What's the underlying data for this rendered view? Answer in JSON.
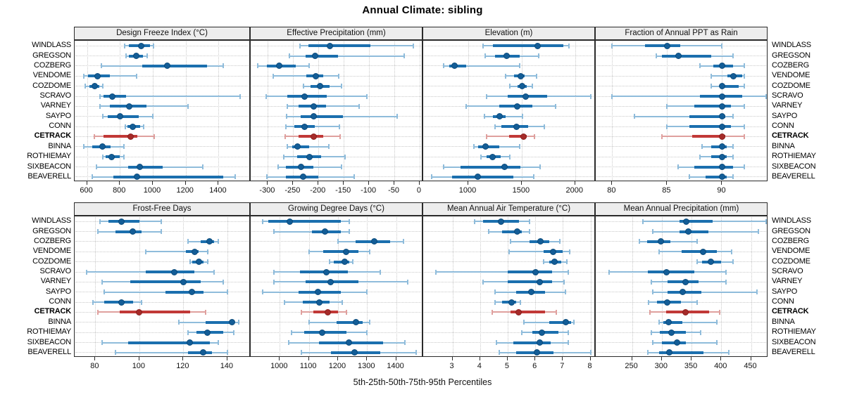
{
  "title": "Annual Climate: sibling",
  "xlabel": "5th-25th-50th-75th-95th Percentiles",
  "colors": {
    "normal": "#1b6fae",
    "normal_light": "#8fbcdb",
    "normal_dot": "#135d97",
    "normal_dot_border": "#0b4a7a",
    "highlight": "#c13937",
    "highlight_light": "#dfa09e",
    "highlight_dot": "#a52b29",
    "highlight_dot_border": "#8a201e",
    "grid": "#c9c9c9",
    "strip_bg": "#ededed",
    "panel_border": "#2a2a2a"
  },
  "chart_data": {
    "type": "dotplot-trellis",
    "layout": "2 rows x 4 cols, station labels on left and right, dotted grid",
    "percentiles": [
      "5th",
      "25th",
      "50th",
      "75th",
      "95th"
    ],
    "stations": [
      "WINDLASS",
      "GREGSON",
      "COZBERG",
      "VENDOME",
      "COZDOME",
      "SCRAVO",
      "VARNEY",
      "SAYPO",
      "CONN",
      "CETRACK",
      "BINNA",
      "ROTHIEMAY",
      "SIXBEACON",
      "BEAVERELL"
    ],
    "highlight_station": "CETRACK",
    "panels": [
      {
        "title": "Design Freeze Index (°C)",
        "grid_pos": [
          0,
          0
        ],
        "axis_ticks": [
          600,
          800,
          1000,
          1200,
          1400
        ],
        "axis_range": [
          525,
          1595
        ],
        "values": [
          [
            827,
            855,
            930,
            985,
            1003
          ],
          [
            838,
            856,
            898,
            940,
            967
          ],
          [
            688,
            935,
            1089,
            1330,
            1430
          ],
          [
            580,
            605,
            665,
            740,
            900
          ],
          [
            590,
            615,
            645,
            675,
            695
          ],
          [
            677,
            700,
            753,
            838,
            1530
          ],
          [
            680,
            740,
            855,
            960,
            1215
          ],
          [
            695,
            725,
            800,
            915,
            1000
          ],
          [
            832,
            848,
            880,
            924,
            945
          ],
          [
            645,
            700,
            865,
            905,
            1010
          ],
          [
            580,
            630,
            695,
            745,
            823
          ],
          [
            695,
            712,
            748,
            800,
            823
          ],
          [
            657,
            850,
            922,
            1060,
            1303
          ],
          [
            630,
            760,
            905,
            1430,
            1500
          ]
        ]
      },
      {
        "title": "Effective Precipitation (mm)",
        "grid_pos": [
          0,
          1
        ],
        "axis_ticks": [
          -300,
          -250,
          -200,
          -150,
          -100,
          -50,
          0
        ],
        "axis_range": [
          -334,
          7
        ],
        "values": [
          [
            -237,
            -220,
            -178,
            -97,
            -12
          ],
          [
            -258,
            -226,
            -207,
            -162,
            -30
          ],
          [
            -320,
            -302,
            -278,
            -245,
            -218
          ],
          [
            -290,
            -224,
            -205,
            -190,
            -160
          ],
          [
            -230,
            -215,
            -197,
            -178,
            -155
          ],
          [
            -303,
            -262,
            -228,
            -183,
            -104
          ],
          [
            -262,
            -240,
            -210,
            -185,
            -120
          ],
          [
            -263,
            -235,
            -210,
            -152,
            -45
          ],
          [
            -265,
            -248,
            -228,
            -207,
            -158
          ],
          [
            -266,
            -240,
            -210,
            -190,
            -157
          ],
          [
            -262,
            -252,
            -242,
            -218,
            -180
          ],
          [
            -268,
            -242,
            -218,
            -195,
            -148
          ],
          [
            -280,
            -265,
            -235,
            -210,
            -155
          ],
          [
            -302,
            -265,
            -230,
            -200,
            -130
          ]
        ]
      },
      {
        "title": "Elevation (m)",
        "grid_pos": [
          0,
          2
        ],
        "axis_ticks": [
          1000,
          1500,
          2000
        ],
        "axis_range": [
          578,
          2193
        ],
        "values": [
          [
            1140,
            1230,
            1650,
            1890,
            1940
          ],
          [
            1160,
            1250,
            1360,
            1480,
            1660
          ],
          [
            770,
            820,
            870,
            980,
            1480
          ],
          [
            1350,
            1430,
            1490,
            1530,
            1640
          ],
          [
            1390,
            1460,
            1505,
            1550,
            1600
          ],
          [
            1170,
            1370,
            1540,
            1740,
            2150
          ],
          [
            980,
            1290,
            1460,
            1600,
            1820
          ],
          [
            1150,
            1230,
            1290,
            1350,
            1510
          ],
          [
            1250,
            1310,
            1450,
            1560,
            1710
          ],
          [
            1170,
            1380,
            1515,
            1550,
            1620
          ],
          [
            1050,
            1090,
            1160,
            1290,
            1480
          ],
          [
            1120,
            1170,
            1230,
            1300,
            1390
          ],
          [
            770,
            930,
            1340,
            1490,
            1670
          ],
          [
            660,
            850,
            1090,
            1420,
            1610
          ]
        ]
      },
      {
        "title": "Fraction of Annual PPT as Rain",
        "grid_pos": [
          0,
          3
        ],
        "axis_ticks": [
          80,
          85,
          90
        ],
        "axis_range": [
          78.5,
          94.2
        ],
        "values": [
          [
            80,
            83,
            85,
            86.2,
            90
          ],
          [
            84,
            84.5,
            86,
            89,
            91
          ],
          [
            88,
            89.2,
            90,
            91,
            92
          ],
          [
            89,
            90.5,
            91,
            91.8,
            92
          ],
          [
            89,
            89.8,
            90,
            91.5,
            92
          ],
          [
            80,
            88,
            90,
            91.8,
            94
          ],
          [
            85,
            87.5,
            90,
            90.8,
            92
          ],
          [
            82,
            87,
            90,
            90.3,
            91
          ],
          [
            85,
            87,
            90,
            90.8,
            92
          ],
          [
            84.5,
            87.3,
            90,
            90.3,
            92
          ],
          [
            88.2,
            89,
            90,
            90.4,
            91
          ],
          [
            88,
            89,
            90,
            90.4,
            91
          ],
          [
            86,
            87.5,
            90,
            91,
            92
          ],
          [
            87,
            88.5,
            90,
            90.4,
            91
          ]
        ]
      },
      {
        "title": "Frost-Free Days",
        "grid_pos": [
          1,
          0
        ],
        "axis_ticks": [
          80,
          100,
          120,
          140
        ],
        "axis_range": [
          70.6,
          150.6
        ],
        "values": [
          [
            82,
            86,
            92,
            100,
            110
          ],
          [
            81,
            89,
            97,
            101,
            110
          ],
          [
            122,
            128,
            132,
            134,
            136
          ],
          [
            103,
            121,
            125,
            127,
            131
          ],
          [
            123,
            124,
            127,
            129,
            131
          ],
          [
            76,
            103,
            116,
            125,
            134
          ],
          [
            83,
            96,
            120,
            128,
            138
          ],
          [
            84,
            112,
            124,
            129,
            140
          ],
          [
            79,
            84,
            92,
            97,
            101
          ],
          [
            81,
            91,
            100,
            123,
            130
          ],
          [
            118,
            130,
            142,
            143,
            145
          ],
          [
            122,
            126,
            131,
            138,
            143
          ],
          [
            83,
            95,
            123,
            132,
            136
          ],
          [
            89,
            122,
            129,
            133,
            140
          ]
        ]
      },
      {
        "title": "Growing Degree Days (°C)",
        "grid_pos": [
          1,
          1
        ],
        "axis_ticks": [
          1000,
          1100,
          1200,
          1300,
          1400
        ],
        "axis_range": [
          900,
          1493
        ],
        "values": [
          [
            940,
            960,
            1035,
            1210,
            1240
          ],
          [
            980,
            1110,
            1155,
            1210,
            1240
          ],
          [
            1200,
            1260,
            1325,
            1380,
            1425
          ],
          [
            1100,
            1150,
            1228,
            1270,
            1310
          ],
          [
            1170,
            1185,
            1222,
            1240,
            1250
          ],
          [
            980,
            1070,
            1160,
            1235,
            1345
          ],
          [
            980,
            1090,
            1175,
            1270,
            1440
          ],
          [
            940,
            1065,
            1130,
            1210,
            1300
          ],
          [
            1015,
            1080,
            1135,
            1170,
            1215
          ],
          [
            1075,
            1115,
            1165,
            1200,
            1230
          ],
          [
            1100,
            1195,
            1262,
            1285,
            1310
          ],
          [
            1040,
            1085,
            1145,
            1230,
            1300
          ],
          [
            1030,
            1135,
            1237,
            1355,
            1430
          ],
          [
            1075,
            1175,
            1258,
            1345,
            1470
          ]
        ]
      },
      {
        "title": "Mean Annual Air Temperature (°C)",
        "grid_pos": [
          1,
          2
        ],
        "axis_ticks": [
          3,
          4,
          5,
          6,
          7,
          8
        ],
        "axis_range": [
          1.94,
          8.19
        ],
        "values": [
          [
            3.8,
            4.1,
            4.75,
            5.4,
            5.8
          ],
          [
            4.3,
            4.8,
            5.35,
            5.5,
            5.8
          ],
          [
            5.1,
            5.8,
            6.2,
            6.5,
            6.9
          ],
          [
            5.05,
            6.3,
            6.65,
            7.0,
            7.25
          ],
          [
            6.3,
            6.5,
            6.7,
            6.95,
            7.15
          ],
          [
            2.4,
            5.0,
            6.0,
            6.6,
            7.2
          ],
          [
            4.1,
            5.0,
            6.15,
            6.6,
            7.05
          ],
          [
            4.55,
            5.3,
            5.85,
            6.35,
            7.1
          ],
          [
            4.55,
            4.8,
            5.15,
            5.3,
            5.45
          ],
          [
            4.45,
            5.1,
            5.4,
            6.35,
            6.75
          ],
          [
            5.6,
            6.5,
            7.1,
            7.3,
            7.4
          ],
          [
            5.5,
            5.9,
            6.25,
            6.85,
            7.2
          ],
          [
            4.6,
            5.2,
            6.15,
            6.55,
            7.2
          ],
          [
            4.7,
            5.3,
            6.05,
            6.65,
            8.0
          ]
        ]
      },
      {
        "title": "Mean Annual Precipitation (mm)",
        "grid_pos": [
          1,
          3
        ],
        "axis_ticks": [
          250,
          300,
          350,
          400,
          450
        ],
        "axis_range": [
          189,
          479
        ],
        "values": [
          [
            268,
            330,
            341,
            385,
            475
          ],
          [
            285,
            330,
            345,
            378,
            462
          ],
          [
            262,
            275,
            298,
            315,
            360
          ],
          [
            295,
            333,
            370,
            393,
            418
          ],
          [
            360,
            368,
            382,
            400,
            420
          ],
          [
            212,
            277,
            308,
            355,
            408
          ],
          [
            282,
            310,
            340,
            362,
            408
          ],
          [
            285,
            310,
            335,
            367,
            460
          ],
          [
            278,
            292,
            309,
            332,
            360
          ],
          [
            280,
            307,
            340,
            380,
            397
          ],
          [
            295,
            303,
            312,
            335,
            392
          ],
          [
            282,
            297,
            316,
            340,
            365
          ],
          [
            285,
            300,
            326,
            340,
            393
          ],
          [
            277,
            295,
            313,
            370,
            413
          ]
        ]
      }
    ]
  }
}
